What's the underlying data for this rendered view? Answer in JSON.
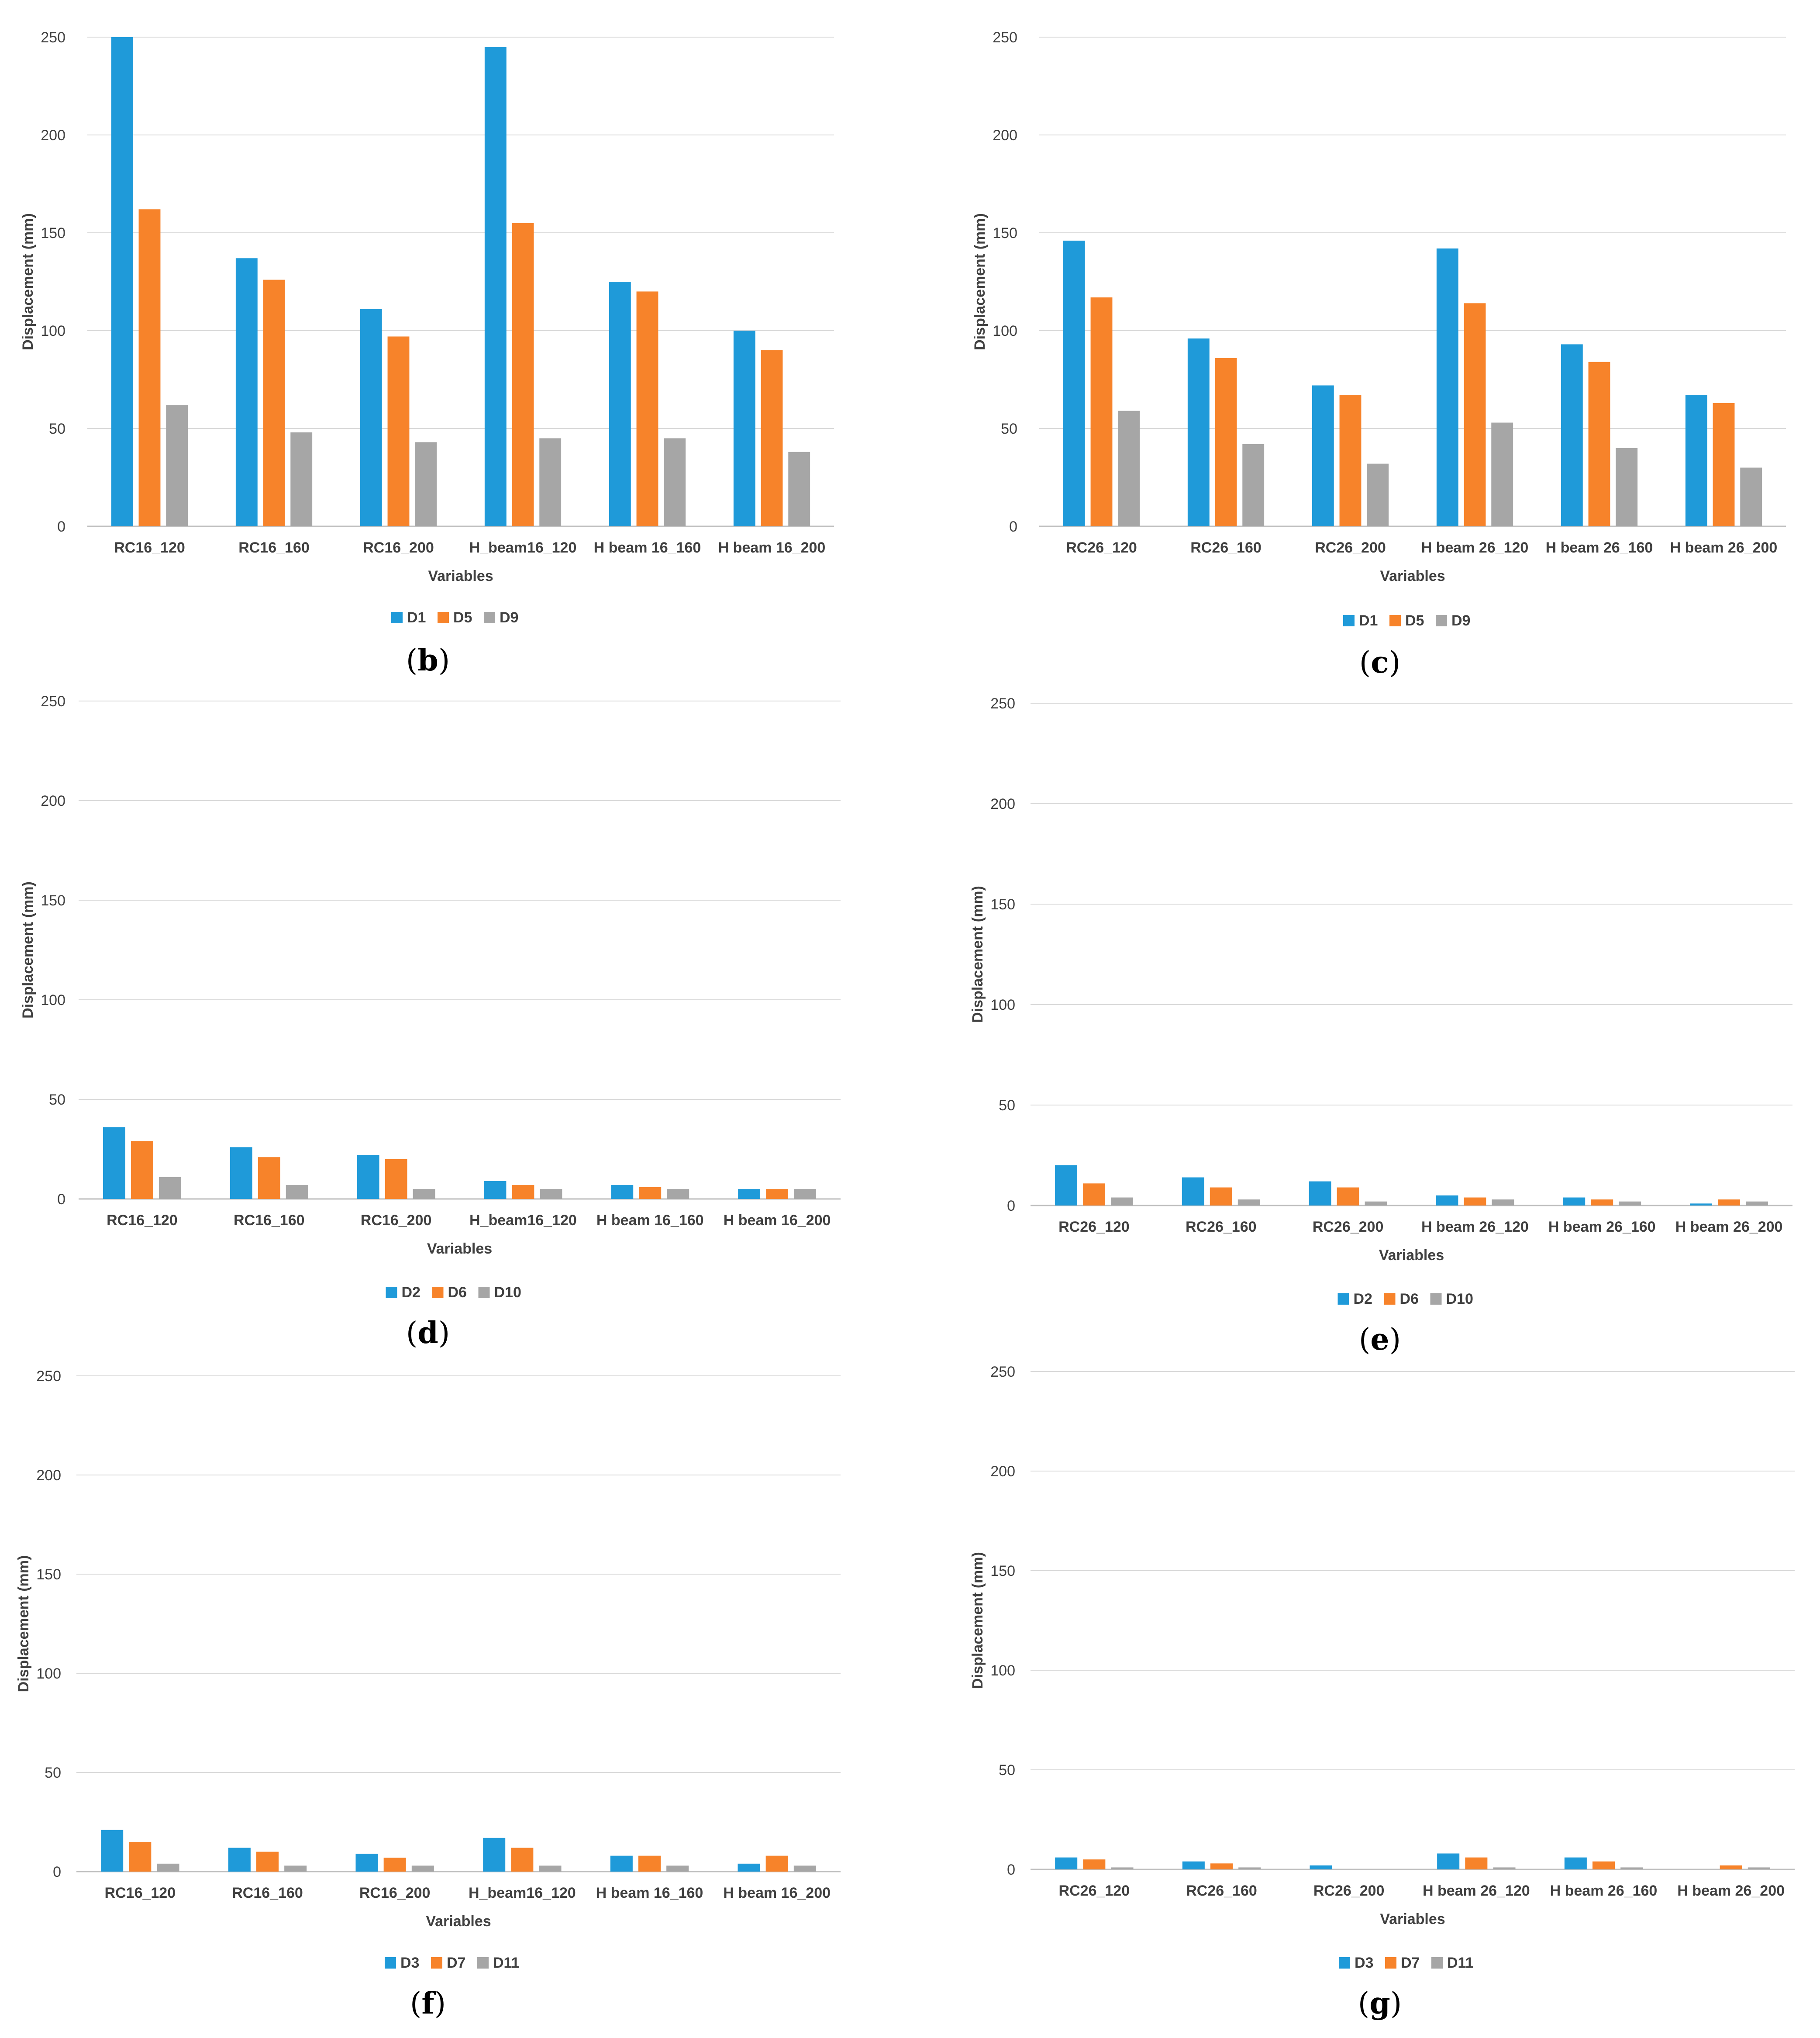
{
  "figure": {
    "colors": {
      "series1": "#1f9ad9",
      "series2": "#f7832a",
      "series3": "#a6a6a6",
      "grid": "#d9d9d9",
      "axis": "#bfbfbf",
      "text": "#404040"
    },
    "panels": [
      {
        "id": "b",
        "caption": {
          "open": "(",
          "letter": "b",
          "close": ")"
        },
        "chart_data": {
          "type": "bar",
          "categories": [
            "RC16_120",
            "RC16_160",
            "RC16_200",
            "H_beam16_120",
            "H beam 16_160",
            "H beam 16_200"
          ],
          "series": [
            {
              "name": "D1",
              "values": [
                250,
                137,
                111,
                245,
                125,
                100
              ]
            },
            {
              "name": "D5",
              "values": [
                162,
                126,
                97,
                155,
                120,
                90
              ]
            },
            {
              "name": "D9",
              "values": [
                62,
                48,
                43,
                45,
                45,
                38
              ]
            }
          ],
          "xlabel": "Variables",
          "ylabel": "Displacement (mm)",
          "ylim": [
            0,
            250
          ],
          "yticks": [
            "0",
            "50",
            "100",
            "150",
            "200",
            "250"
          ],
          "grid": true,
          "legend": "bottom-center"
        }
      },
      {
        "id": "c",
        "caption": {
          "open": "(",
          "letter": "c",
          "close": ")"
        },
        "chart_data": {
          "type": "bar",
          "categories": [
            "RC26_120",
            "RC26_160",
            "RC26_200",
            "H beam 26_120",
            "H beam 26_160",
            "H beam 26_200"
          ],
          "series": [
            {
              "name": "D1",
              "values": [
                146,
                96,
                72,
                142,
                93,
                67
              ]
            },
            {
              "name": "D5",
              "values": [
                117,
                86,
                67,
                114,
                84,
                63
              ]
            },
            {
              "name": "D9",
              "values": [
                59,
                42,
                32,
                53,
                40,
                30
              ]
            }
          ],
          "xlabel": "Variables",
          "ylabel": "Displacement (mm)",
          "ylim": [
            0,
            250
          ],
          "yticks": [
            "0",
            "50",
            "100",
            "150",
            "200",
            "250"
          ],
          "grid": true,
          "legend": "bottom-center"
        }
      },
      {
        "id": "d",
        "caption": {
          "open": "(",
          "letter": "d",
          "close": ")"
        },
        "chart_data": {
          "type": "bar",
          "categories": [
            "RC16_120",
            "RC16_160",
            "RC16_200",
            "H_beam16_120",
            "H beam 16_160",
            "H beam 16_200"
          ],
          "series": [
            {
              "name": "D2",
              "values": [
                36,
                26,
                22,
                9,
                7,
                5
              ]
            },
            {
              "name": "D6",
              "values": [
                29,
                21,
                20,
                7,
                6,
                5
              ]
            },
            {
              "name": "D10",
              "values": [
                11,
                7,
                5,
                5,
                5,
                5
              ]
            }
          ],
          "xlabel": "Variables",
          "ylabel": "Displacement (mm)",
          "ylim": [
            0,
            250
          ],
          "yticks": [
            "0",
            "50",
            "100",
            "150",
            "200",
            "250"
          ],
          "grid": true,
          "legend": "bottom-center"
        }
      },
      {
        "id": "e",
        "caption": {
          "open": "(",
          "letter": "e",
          "close": ")"
        },
        "chart_data": {
          "type": "bar",
          "categories": [
            "RC26_120",
            "RC26_160",
            "RC26_200",
            "H beam 26_120",
            "H beam 26_160",
            "H beam 26_200"
          ],
          "series": [
            {
              "name": "D2",
              "values": [
                20,
                14,
                12,
                5,
                4,
                1
              ]
            },
            {
              "name": "D6",
              "values": [
                11,
                9,
                9,
                4,
                3,
                3
              ]
            },
            {
              "name": "D10",
              "values": [
                4,
                3,
                2,
                3,
                2,
                2
              ]
            }
          ],
          "xlabel": "Variables",
          "ylabel": "Displacement (mm)",
          "ylim": [
            0,
            250
          ],
          "yticks": [
            "0",
            "50",
            "100",
            "150",
            "200",
            "250"
          ],
          "grid": true,
          "legend": "bottom-center"
        }
      },
      {
        "id": "f",
        "caption": {
          "open": "(",
          "letter": "f",
          "close": ")"
        },
        "chart_data": {
          "type": "bar",
          "categories": [
            "RC16_120",
            "RC16_160",
            "RC16_200",
            "H_beam16_120",
            "H beam 16_160",
            "H beam 16_200"
          ],
          "series": [
            {
              "name": "D3",
              "values": [
                21,
                12,
                9,
                17,
                8,
                4
              ]
            },
            {
              "name": "D7",
              "values": [
                15,
                10,
                7,
                12,
                8,
                8
              ]
            },
            {
              "name": "D11",
              "values": [
                4,
                3,
                3,
                3,
                3,
                3
              ]
            }
          ],
          "xlabel": "Variables",
          "ylabel": "Displacement (mm)",
          "ylim": [
            0,
            250
          ],
          "yticks": [
            "0",
            "50",
            "100",
            "150",
            "200",
            "250"
          ],
          "grid": true,
          "legend": "bottom-center"
        }
      },
      {
        "id": "g",
        "caption": {
          "open": "(",
          "letter": "g",
          "close": ")"
        },
        "chart_data": {
          "type": "bar",
          "categories": [
            "RC26_120",
            "RC26_160",
            "RC26_200",
            "H beam 26_120",
            "H beam 26_160",
            "H beam 26_200"
          ],
          "series": [
            {
              "name": "D3",
              "values": [
                6,
                4,
                2,
                8,
                6,
                0
              ]
            },
            {
              "name": "D7",
              "values": [
                5,
                3,
                0,
                6,
                4,
                2
              ]
            },
            {
              "name": "D11",
              "values": [
                1,
                1,
                0,
                1,
                1,
                1
              ]
            }
          ],
          "xlabel": "Variables",
          "ylabel": "Displacement (mm)",
          "ylim": [
            0,
            250
          ],
          "yticks": [
            "0",
            "50",
            "100",
            "150",
            "200",
            "250"
          ],
          "grid": true,
          "legend": "bottom-center"
        }
      }
    ]
  }
}
